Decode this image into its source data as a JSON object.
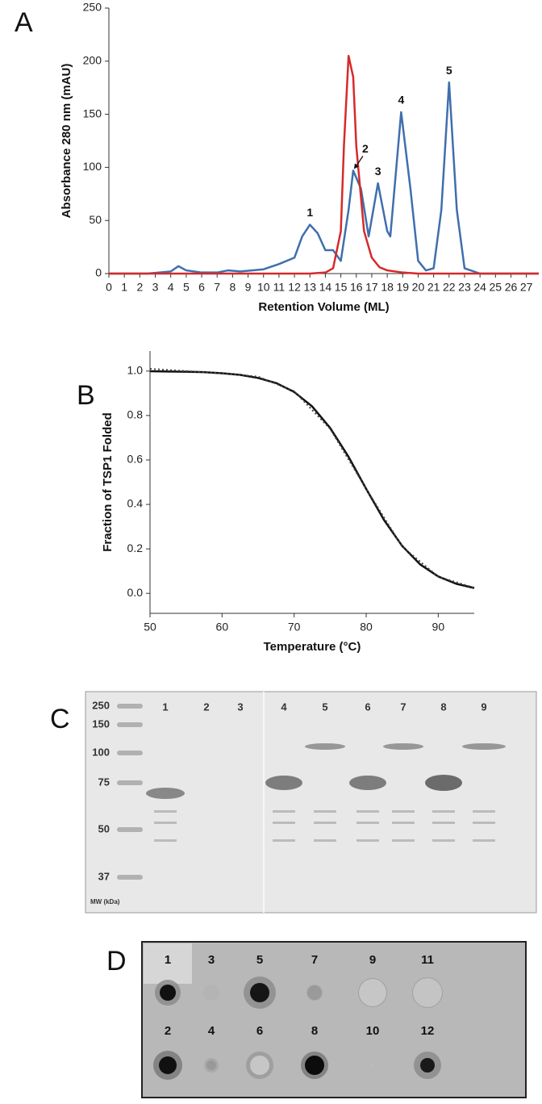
{
  "panel_labels": [
    "A",
    "B",
    "C",
    "D"
  ],
  "chart_data": [
    {
      "type": "line",
      "x_label": "Retention Volume (ML)",
      "y_label": "Absorbance 280 nm (mAU)",
      "xlim": [
        0,
        27.8
      ],
      "ylim": [
        0,
        250
      ],
      "xticks": [
        0,
        1,
        2,
        3,
        4,
        5,
        6,
        7,
        8,
        9,
        10,
        11,
        12,
        13,
        14,
        15,
        16,
        17,
        18,
        19,
        20,
        21,
        22,
        23,
        24,
        25,
        26,
        27
      ],
      "yticks": [
        0,
        50,
        100,
        150,
        200,
        250
      ],
      "grid": false,
      "series": [
        {
          "color": "#3f6fad",
          "dash": false,
          "x": [
            0,
            2.5,
            4,
            4.5,
            5,
            6,
            7,
            7.7,
            8.5,
            10,
            11,
            12,
            12.5,
            13,
            13.5,
            14,
            14.5,
            15,
            15.5,
            15.8,
            16.3,
            16.8,
            17.4,
            18,
            18.2,
            18.9,
            19.5,
            20,
            20.5,
            21,
            21.5,
            22,
            22.5,
            23,
            24,
            27.8
          ],
          "values": [
            0,
            0,
            2,
            7,
            3,
            1,
            1,
            3,
            2,
            4,
            9,
            15,
            35,
            46,
            38,
            22,
            22,
            12,
            60,
            97,
            80,
            35,
            85,
            40,
            35,
            152,
            80,
            12,
            3,
            5,
            60,
            180,
            60,
            5,
            0,
            0
          ]
        },
        {
          "color": "#d62a2a",
          "dash": false,
          "x": [
            0,
            13,
            14,
            14.5,
            15,
            15.2,
            15.5,
            15.8,
            16,
            16.5,
            17,
            17.5,
            18,
            19,
            20,
            27.8
          ],
          "values": [
            0,
            0,
            1,
            5,
            40,
            120,
            205,
            185,
            120,
            40,
            15,
            6,
            3,
            1,
            0,
            0
          ]
        }
      ],
      "annotations": [
        {
          "text": "1",
          "x": 13,
          "y": 46,
          "arrow": false
        },
        {
          "text": "2",
          "x": 15.8,
          "y": 97,
          "arrow": true
        },
        {
          "text": "3",
          "x": 17.4,
          "y": 85,
          "arrow": false
        },
        {
          "text": "4",
          "x": 18.9,
          "y": 152,
          "arrow": false
        },
        {
          "text": "5",
          "x": 22,
          "y": 180,
          "arrow": false
        }
      ]
    },
    {
      "type": "line",
      "x_label": "Temperature (°C)",
      "y_label": "Fraction of TSP1 Folded",
      "xlim": [
        50,
        95
      ],
      "ylim": [
        -0.09,
        1.09
      ],
      "xticks": [
        50,
        60,
        70,
        80,
        90
      ],
      "yticks": [
        {
          "value": 0,
          "label": "0.0"
        },
        {
          "value": 0.2,
          "label": "0.2"
        },
        {
          "value": 0.4,
          "label": "0.4"
        },
        {
          "value": 0.6,
          "label": "0.6"
        },
        {
          "value": 0.8,
          "label": "0.8"
        },
        {
          "value": 1,
          "label": "1.0"
        }
      ],
      "grid": false,
      "series": [
        {
          "color": "#111111",
          "dash": false,
          "x": [
            50,
            52.5,
            55,
            57.5,
            60,
            62.5,
            65,
            67.5,
            70,
            72.5,
            75,
            77.5,
            80,
            82.5,
            85,
            87.5,
            90,
            92.5,
            95
          ],
          "values": [
            0.999,
            0.998,
            0.997,
            0.995,
            0.99,
            0.983,
            0.969,
            0.946,
            0.906,
            0.841,
            0.744,
            0.617,
            0.47,
            0.329,
            0.213,
            0.13,
            0.076,
            0.043,
            0.024
          ]
        },
        {
          "color": "#444444",
          "dash": true,
          "x": [
            50,
            55,
            60,
            65,
            70,
            75,
            80,
            85,
            90,
            95
          ],
          "values": [
            1.01,
            1.0,
            0.99,
            0.975,
            0.91,
            0.74,
            0.47,
            0.21,
            0.075,
            0.025
          ]
        }
      ],
      "annotations": []
    }
  ],
  "gel": {
    "markers": [
      "250",
      "150",
      "100",
      "75",
      "50",
      "37"
    ],
    "marker_caption": "MW (kDa)",
    "lanes": [
      "1",
      "2",
      "3",
      "4",
      "5",
      "6",
      "7",
      "8",
      "9"
    ]
  },
  "dot_blot": {
    "spots": [
      "1",
      "2",
      "3",
      "4",
      "5",
      "6",
      "7",
      "8",
      "9",
      "10",
      "11",
      "12"
    ]
  }
}
